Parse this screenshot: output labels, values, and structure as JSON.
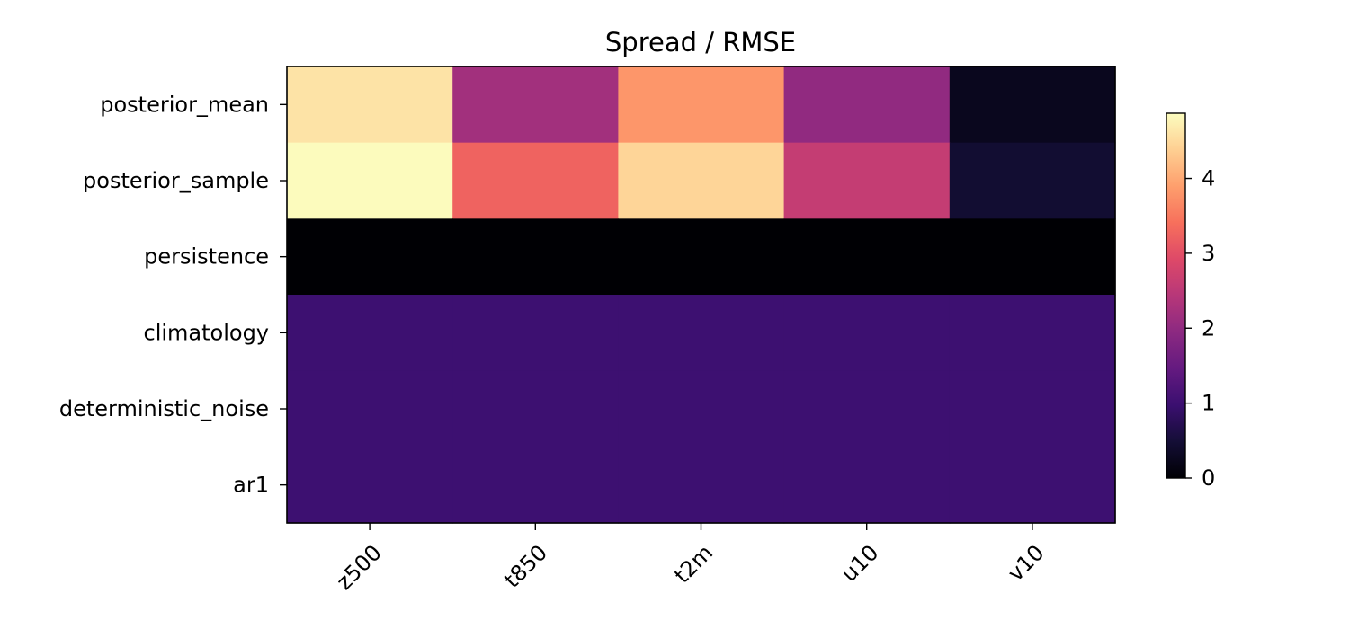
{
  "chart_data": {
    "type": "heatmap",
    "title": "Spread / RMSE",
    "x_categories": [
      "z500",
      "t850",
      "t2m",
      "u10",
      "v10"
    ],
    "y_categories": [
      "posterior_mean",
      "posterior_sample",
      "persistence",
      "climatology",
      "deterministic_noise",
      "ar1"
    ],
    "values": [
      [
        4.6,
        2.2,
        3.8,
        2.0,
        0.25
      ],
      [
        4.85,
        3.25,
        4.45,
        2.6,
        0.45
      ],
      [
        0.0,
        0.0,
        0.0,
        0.0,
        0.0
      ],
      [
        1.0,
        1.0,
        1.0,
        1.0,
        1.0
      ],
      [
        1.0,
        1.0,
        1.0,
        1.0,
        1.0
      ],
      [
        1.0,
        1.0,
        1.0,
        1.0,
        1.0
      ]
    ],
    "colormap": "magma",
    "colorbar": {
      "range": [
        0,
        4.87
      ],
      "ticks": [
        0,
        1,
        2,
        3,
        4
      ],
      "tick_labels": [
        "0",
        "1",
        "2",
        "3",
        "4"
      ]
    },
    "xlabel": "",
    "ylabel": "",
    "x_tick_rotation": "45° counter-clockwise, right-aligned",
    "grid": false
  }
}
